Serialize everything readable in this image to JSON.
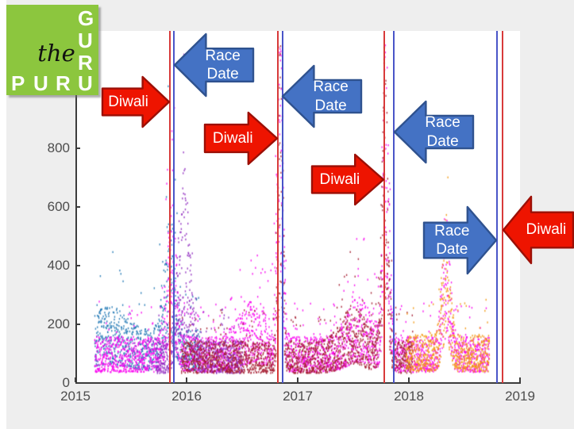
{
  "logo": {
    "script_word": "the",
    "bottom_word": "PURU",
    "right_word": "GURU",
    "bottom_letters": [
      "P",
      "U",
      "R",
      "U"
    ],
    "right_letters": [
      "G",
      "U",
      "R"
    ],
    "bg_color": "#8cc63e"
  },
  "chart_data": {
    "type": "scatter",
    "title": "",
    "xlabel": "",
    "ylabel": "",
    "xlim": [
      2015,
      2019
    ],
    "ylim": [
      0,
      1200
    ],
    "xticks": [
      "2015",
      "2016",
      "2017",
      "2018",
      "2019"
    ],
    "yticks": [
      "0",
      "200",
      "400",
      "600",
      "800"
    ],
    "grid": false,
    "legend": "none",
    "description": "Dense daily price-style scatter (multiple colored market series) from early 2015 to late 2018. Baseline band roughly 30-250 with large seasonal spikes each autumn around Diwali; paired red (Diwali) and blue (Race Date) vertical event lines mark each season.",
    "seasonal_peaks": [
      {
        "season": "2015",
        "approx_peak": 600
      },
      {
        "season": "2016",
        "approx_peak": 1100
      },
      {
        "season": "2017",
        "approx_peak": 1000
      },
      {
        "season": "2018",
        "approx_peak": 520
      }
    ],
    "series": [
      {
        "name": "series-blue",
        "color": "#1f77b4",
        "start": 2015.17,
        "end": 2016.12,
        "base": 130,
        "bumps": [
          {
            "c": 2015.3,
            "a": 60,
            "w": 0.2
          },
          {
            "c": 2015.84,
            "a": 300,
            "w": 0.07
          }
        ]
      },
      {
        "name": "series-magenta",
        "color": "#f902f0",
        "start": 2015.17,
        "end": 2018.72,
        "base": 115,
        "bumps": [
          {
            "c": 2015.86,
            "a": 330,
            "w": 0.06
          },
          {
            "c": 2016.835,
            "a": 860,
            "w": 0.035
          },
          {
            "c": 2016.6,
            "a": 90,
            "w": 0.18
          },
          {
            "c": 2017.79,
            "a": 800,
            "w": 0.035
          },
          {
            "c": 2017.55,
            "a": 100,
            "w": 0.15
          },
          {
            "c": 2018.33,
            "a": 330,
            "w": 0.05
          }
        ]
      },
      {
        "name": "series-purple",
        "color": "#8f2bbf",
        "start": 2015.72,
        "end": 2016.5,
        "base": 105,
        "bumps": [
          {
            "c": 2015.97,
            "a": 430,
            "w": 0.07
          }
        ]
      },
      {
        "name": "series-crimson",
        "color": "#a51c30",
        "start": 2015.95,
        "end": 2018.03,
        "base": 105,
        "bumps": [
          {
            "c": 2016.84,
            "a": 800,
            "w": 0.03
          },
          {
            "c": 2017.78,
            "a": 740,
            "w": 0.04
          },
          {
            "c": 2017.5,
            "a": 90,
            "w": 0.15
          }
        ]
      },
      {
        "name": "series-orange",
        "color": "#f2970f",
        "start": 2017.97,
        "end": 2018.72,
        "base": 120,
        "bumps": [
          {
            "c": 2018.33,
            "a": 300,
            "w": 0.05
          }
        ]
      }
    ],
    "events": [
      {
        "year": 2015.85,
        "kind": "diwali",
        "color": "#d83a3a"
      },
      {
        "year": 2015.889,
        "kind": "race",
        "color": "#4a55c8"
      },
      {
        "year": 2016.821,
        "kind": "diwali",
        "color": "#d83a3a"
      },
      {
        "year": 2016.861,
        "kind": "race",
        "color": "#4a55c8"
      },
      {
        "year": 2017.779,
        "kind": "diwali",
        "color": "#d83a3a"
      },
      {
        "year": 2017.864,
        "kind": "race",
        "color": "#4a55c8"
      },
      {
        "year": 2018.793,
        "kind": "race",
        "color": "#4a55c8"
      },
      {
        "year": 2018.843,
        "kind": "diwali",
        "color": "#d83a3a"
      }
    ]
  },
  "annotations": [
    {
      "label": "Diwali",
      "line1": "Diwali",
      "line2": "",
      "direction": "right",
      "kind": "diwali"
    },
    {
      "label": "Race Date",
      "line1": "Race",
      "line2": "Date",
      "direction": "left",
      "kind": "race"
    },
    {
      "label": "Diwali",
      "line1": "Diwali",
      "line2": "",
      "direction": "right",
      "kind": "diwali"
    },
    {
      "label": "Race Date",
      "line1": "Race",
      "line2": "Date",
      "direction": "left",
      "kind": "race"
    },
    {
      "label": "Diwali",
      "line1": "Diwali",
      "line2": "",
      "direction": "right",
      "kind": "diwali"
    },
    {
      "label": "Race Date",
      "line1": "Race",
      "line2": "Date",
      "direction": "left",
      "kind": "race"
    },
    {
      "label": "Race Date",
      "line1": "Race",
      "line2": "Date",
      "direction": "right",
      "kind": "race"
    },
    {
      "label": "Diwali",
      "line1": "Diwali",
      "line2": "",
      "direction": "left",
      "kind": "diwali"
    }
  ],
  "colors": {
    "figure_bg": "#eeeeee",
    "plot_bg": "#ffffff",
    "axis": "#3c3c3c",
    "tick_text": "#4d4d4d",
    "diwali_arrow_fill": "#ee1400",
    "diwali_arrow_border": "#9c0f06",
    "race_arrow_fill": "#4472c4",
    "race_arrow_border": "#2f528f",
    "diwali_line": "#d83a3a",
    "race_line": "#4a55c8"
  }
}
